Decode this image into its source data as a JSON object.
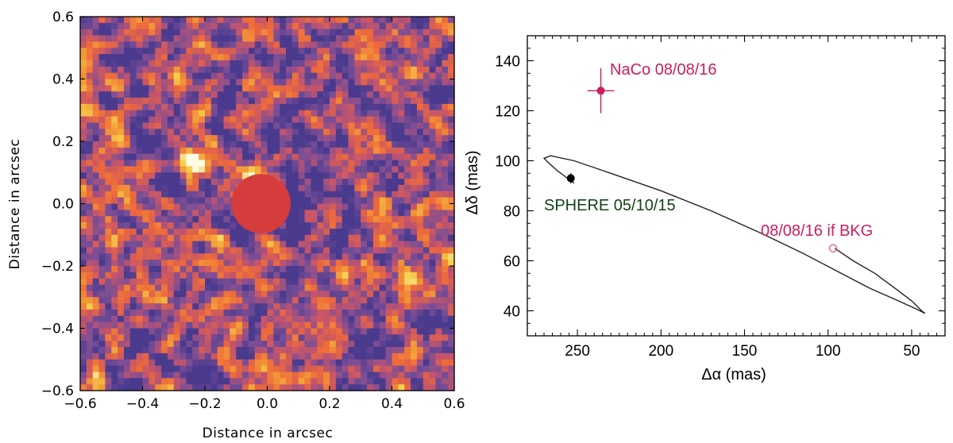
{
  "chart_data": [
    {
      "type": "heatmap",
      "title": "",
      "xlabel": "Distance in arcsec",
      "ylabel": "Distance in arcsec",
      "xlim": [
        -0.6,
        0.6
      ],
      "ylim": [
        -0.6,
        0.6
      ],
      "xticks": [
        "−0.6",
        "−0.4",
        "−0.2",
        "0.0",
        "0.2",
        "0.4",
        "0.6"
      ],
      "yticks": [
        "−0.6",
        "−0.4",
        "−0.2",
        "0.0",
        "0.2",
        "0.4",
        "0.6"
      ],
      "colormap": [
        "#4a3a8e",
        "#7a4e96",
        "#c2546d",
        "#ee6a3a",
        "#f29a38",
        "#f7d04c",
        "#fffbe8"
      ],
      "mask_color": "#d63c3c",
      "features": [
        {
          "name": "bright-source",
          "x": -0.24,
          "y": 0.14,
          "level": 1.0
        },
        {
          "name": "coronagraph-mask",
          "x": -0.02,
          "y": 0.0,
          "radius": 0.095
        }
      ]
    },
    {
      "type": "line",
      "xlabel": "Δα (mas)",
      "ylabel": "Δδ (mas)",
      "xlim": [
        280,
        30
      ],
      "ylim": [
        30,
        150
      ],
      "xticks": [
        250,
        200,
        150,
        100,
        50
      ],
      "yticks": [
        40,
        60,
        80,
        100,
        120,
        140
      ],
      "series": [
        {
          "name": "background-track",
          "color": "#222222",
          "points": [
            [
              252,
              91
            ],
            [
              256,
              93
            ],
            [
              262,
              96
            ],
            [
              267,
              99
            ],
            [
              270,
              101
            ],
            [
              266,
              102
            ],
            [
              252,
              100
            ],
            [
              230,
              95
            ],
            [
              200,
              88
            ],
            [
              170,
              80
            ],
            [
              140,
              71
            ],
            [
              115,
              63
            ],
            [
              95,
              56
            ],
            [
              75,
              49
            ],
            [
              58,
              44
            ],
            [
              48,
              41
            ],
            [
              42,
              39
            ],
            [
              44,
              40
            ],
            [
              50,
              44
            ],
            [
              60,
              49
            ],
            [
              72,
              55
            ],
            [
              85,
              60
            ],
            [
              96,
              65
            ]
          ]
        }
      ],
      "points": [
        {
          "name": "naco",
          "label": "NaCo 08/08/16",
          "x": 236,
          "y": 128,
          "xerr": 8,
          "yerr": 9,
          "color": "#cc1d5e",
          "filled": true
        },
        {
          "name": "sphere",
          "label": "SPHERE 05/10/15",
          "x": 254,
          "y": 93,
          "xerr": 1,
          "yerr": 2,
          "color": "#000000",
          "filled": true
        },
        {
          "name": "bkg",
          "label": "08/08/16  if BKG",
          "x": 97,
          "y": 65,
          "color": "#e0507e",
          "filled": false
        }
      ],
      "label_colors": {
        "naco": "#cc1d5e",
        "sphere": "#144314",
        "bkg": "#cc1d5e"
      }
    }
  ]
}
